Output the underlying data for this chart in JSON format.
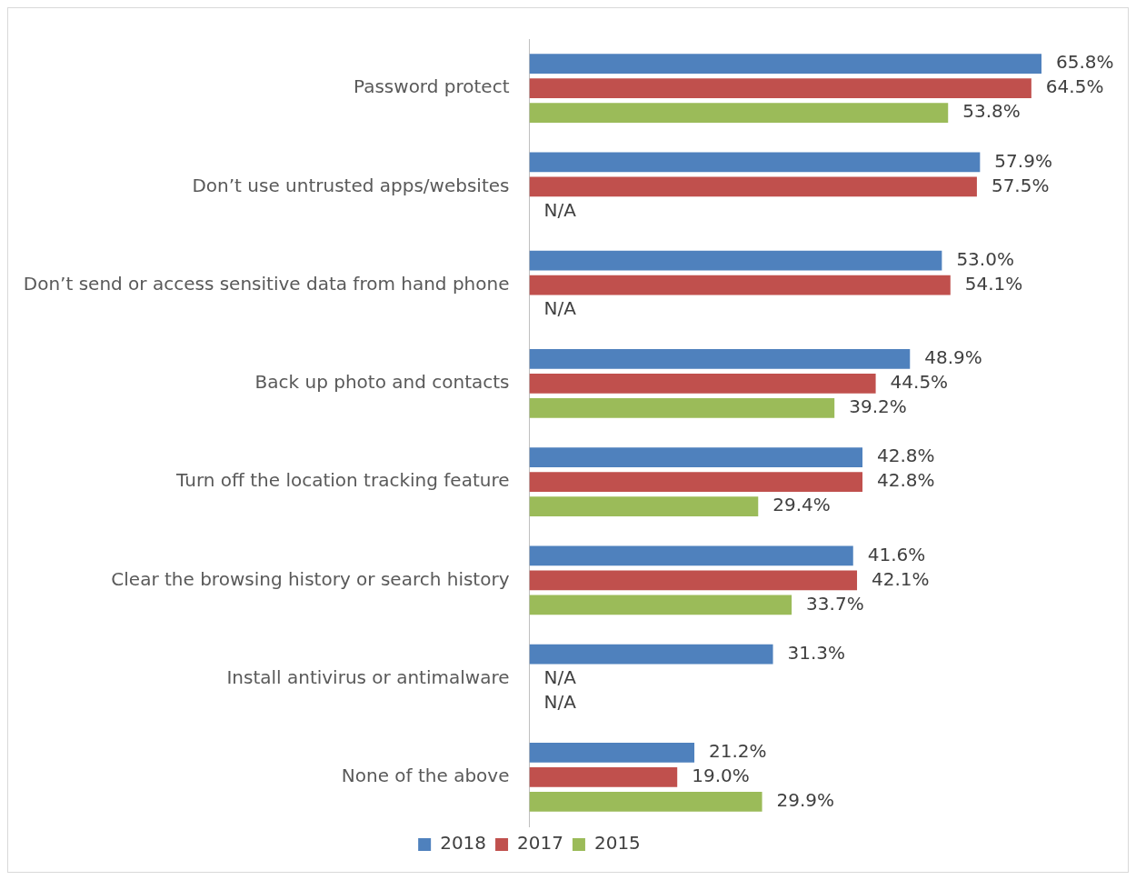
{
  "chart_data": {
    "type": "bar",
    "orientation": "horizontal",
    "categories": [
      "Password protect",
      "Don’t use untrusted apps/websites",
      "Don’t send or access sensitive data from hand phone",
      "Back up photo and contacts",
      "Turn off the location tracking feature",
      "Clear the browsing history or search history",
      "Install antivirus or antimalware",
      "None of the above"
    ],
    "series": [
      {
        "name": "2018",
        "color": "#4f81bd",
        "values": [
          65.8,
          57.9,
          53.0,
          48.9,
          42.8,
          41.6,
          31.3,
          21.2
        ],
        "value_labels": [
          "65.8%",
          "57.9%",
          "53.0%",
          "48.9%",
          "42.8%",
          "41.6%",
          "31.3%",
          "21.2%"
        ]
      },
      {
        "name": "2017",
        "color": "#c0504d",
        "values": [
          64.5,
          57.5,
          54.1,
          44.5,
          42.8,
          42.1,
          null,
          19.0
        ],
        "value_labels": [
          "64.5%",
          "57.5%",
          "54.1%",
          "44.5%",
          "42.8%",
          "42.1%",
          "N/A",
          "19.0%"
        ]
      },
      {
        "name": "2015",
        "color": "#9bbb59",
        "values": [
          53.8,
          null,
          null,
          39.2,
          29.4,
          33.7,
          null,
          29.9
        ],
        "value_labels": [
          "53.8%",
          "N/A",
          "N/A",
          "39.2%",
          "29.4%",
          "33.7%",
          "N/A",
          "29.9%"
        ]
      }
    ],
    "legend": "bottom",
    "tick_labels": "y"
  }
}
